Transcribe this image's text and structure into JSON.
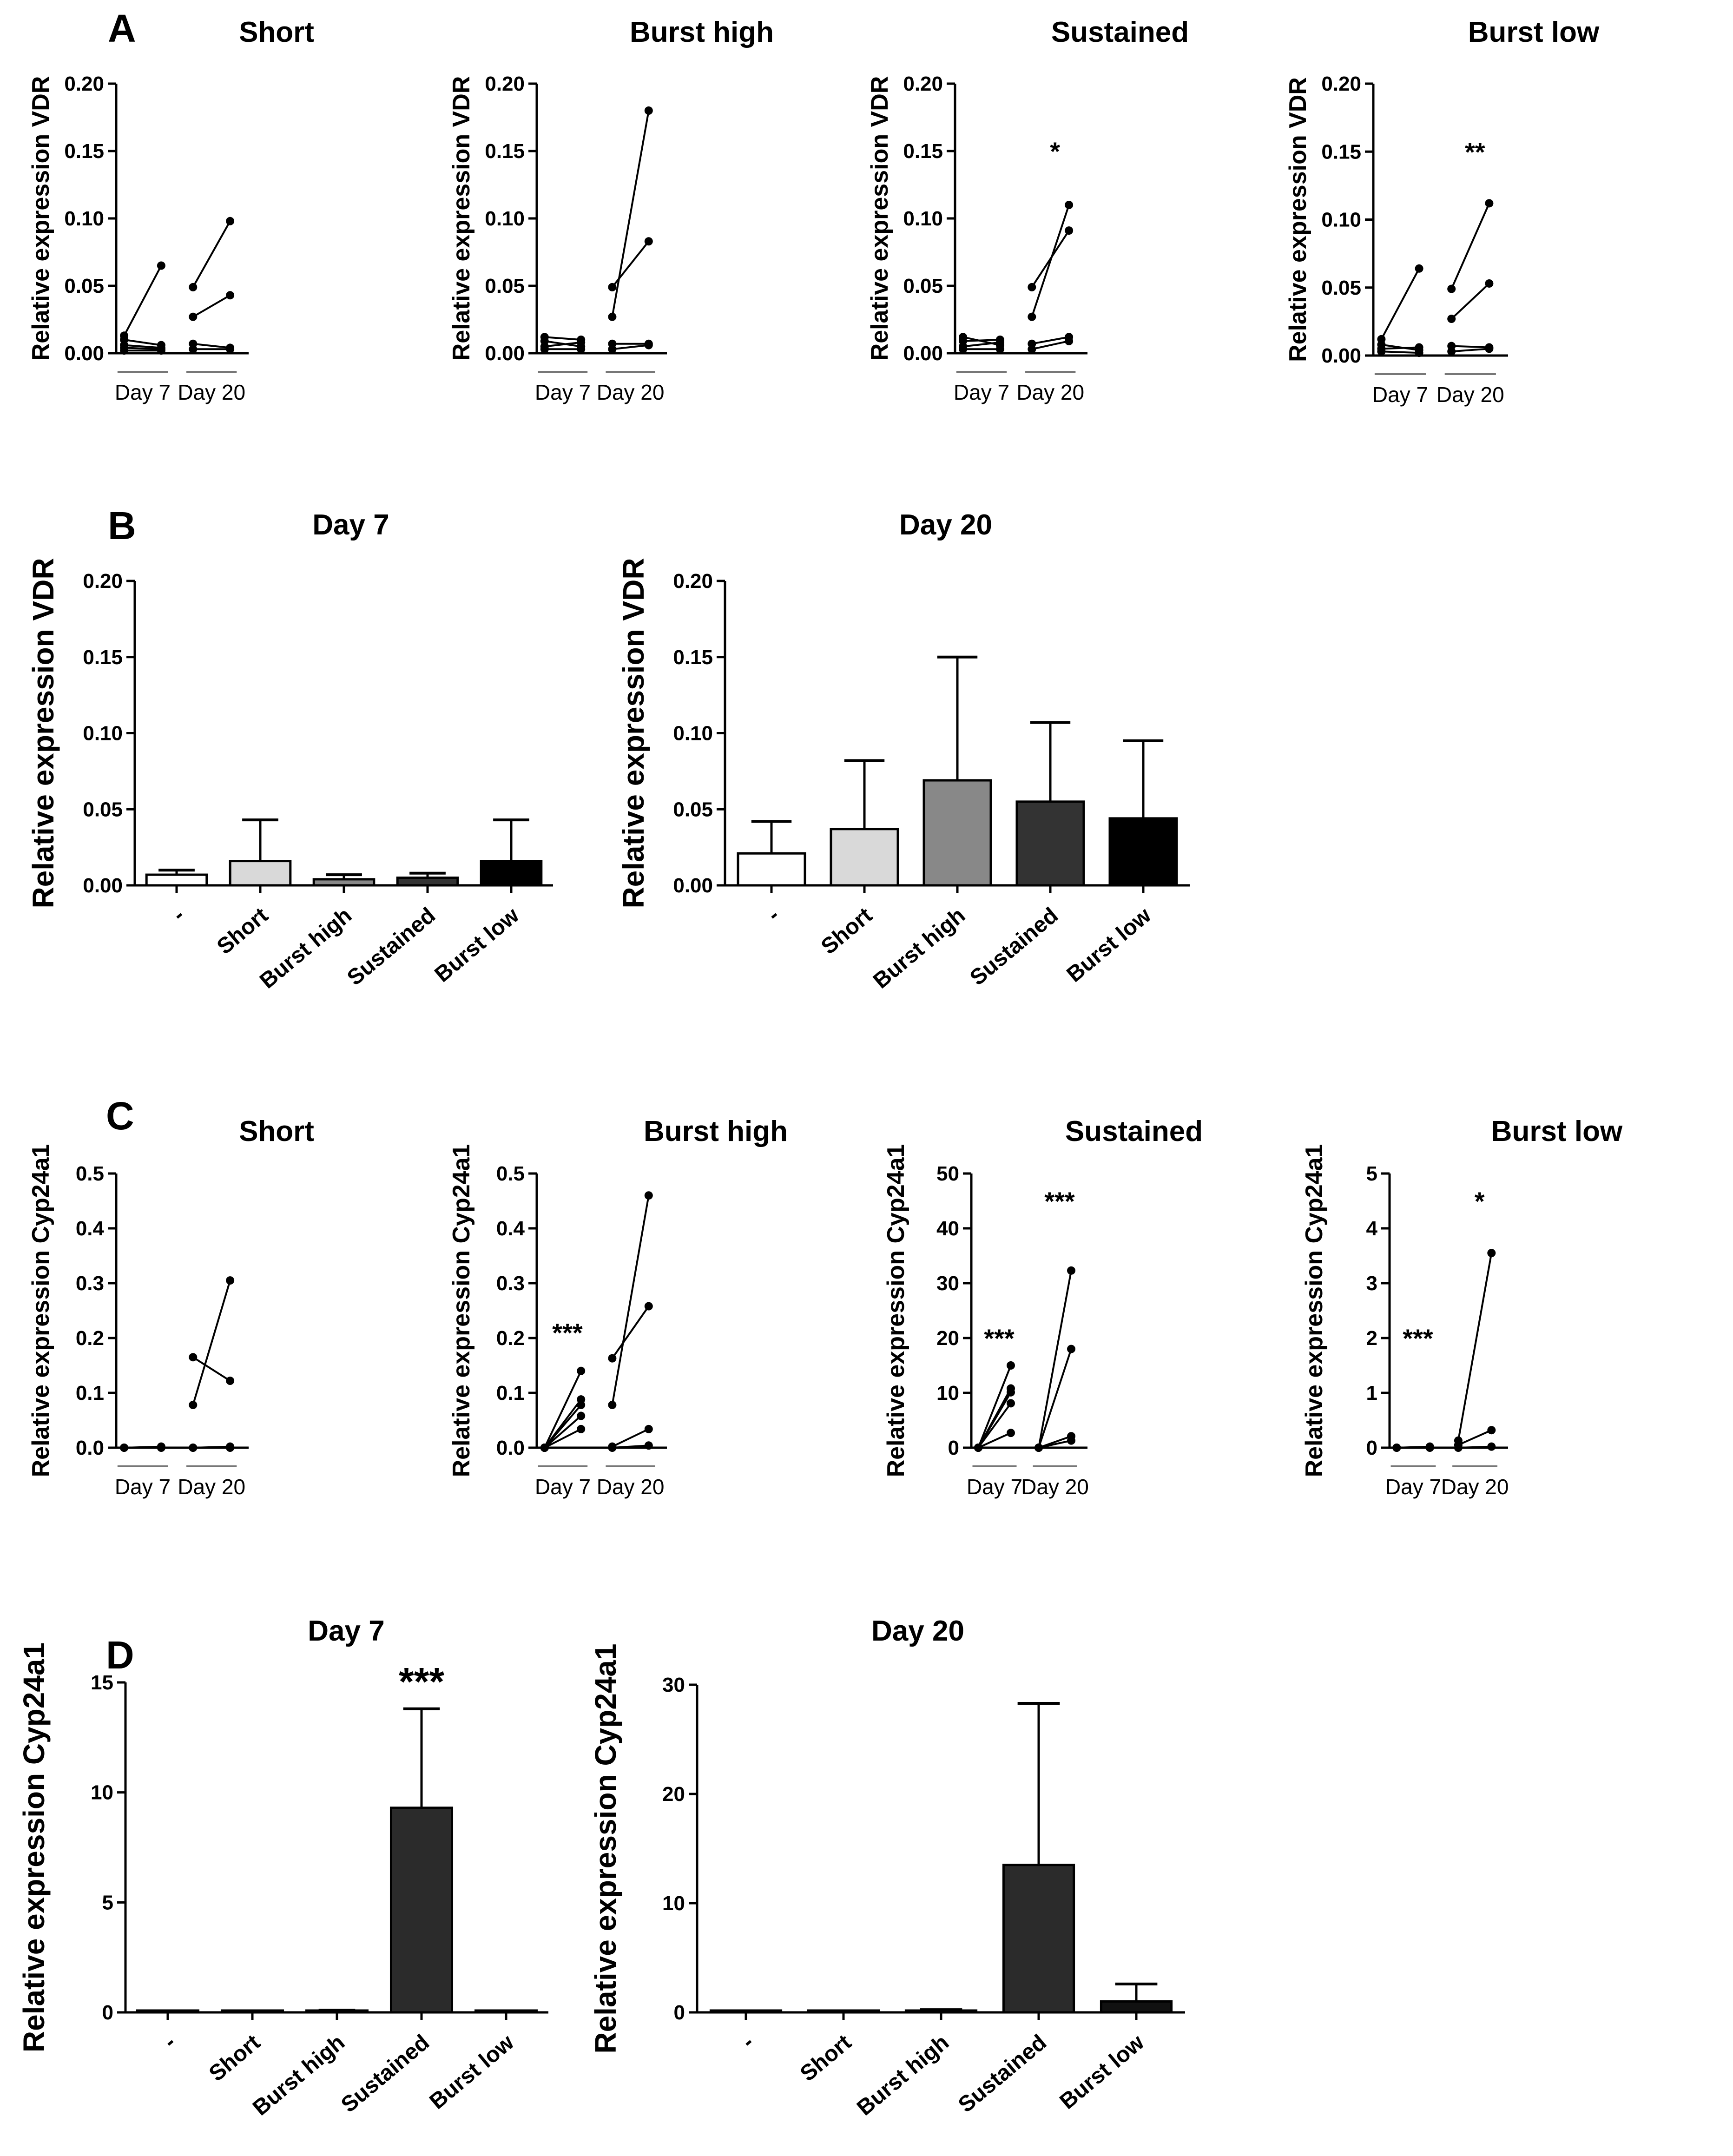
{
  "panels": [
    "A",
    "B",
    "C",
    "D"
  ],
  "chart_data": [
    {
      "panel": "A",
      "type": "line",
      "title": "Short",
      "ylabel": "Relative expression VDR",
      "ylim": [
        0,
        0.2
      ],
      "yticks": [
        "0.00",
        "0.05",
        "0.10",
        "0.15",
        "0.20"
      ],
      "categories": [
        "Day 7",
        "Day 20"
      ],
      "pairs": [
        {
          "day": "Day 7",
          "series": [
            [
              0.013,
              0.065
            ],
            [
              0.01,
              0.006
            ],
            [
              0.006,
              0.004
            ],
            [
              0.004,
              0.003
            ],
            [
              0.002,
              0.002
            ]
          ]
        },
        {
          "day": "Day 20",
          "series": [
            [
              0.049,
              0.098
            ],
            [
              0.027,
              0.043
            ],
            [
              0.007,
              0.004
            ],
            [
              0.003,
              0.003
            ]
          ]
        }
      ],
      "annotations": []
    },
    {
      "panel": "A",
      "type": "line",
      "title": "Burst high",
      "ylabel": "Relative expression VDR",
      "ylim": [
        0,
        0.2
      ],
      "yticks": [
        "0.00",
        "0.05",
        "0.10",
        "0.15",
        "0.20"
      ],
      "categories": [
        "Day 7",
        "Day 20"
      ],
      "pairs": [
        {
          "day": "Day 7",
          "series": [
            [
              0.012,
              0.01
            ],
            [
              0.009,
              0.005
            ],
            [
              0.005,
              0.008
            ],
            [
              0.003,
              0.003
            ]
          ]
        },
        {
          "day": "Day 20",
          "series": [
            [
              0.049,
              0.083
            ],
            [
              0.027,
              0.18
            ],
            [
              0.007,
              0.007
            ],
            [
              0.003,
              0.006
            ]
          ]
        }
      ],
      "annotations": []
    },
    {
      "panel": "A",
      "type": "line",
      "title": "Sustained",
      "ylabel": "Relative expression VDR",
      "ylim": [
        0,
        0.2
      ],
      "yticks": [
        "0.00",
        "0.05",
        "0.10",
        "0.15",
        "0.20"
      ],
      "categories": [
        "Day 7",
        "Day 20"
      ],
      "pairs": [
        {
          "day": "Day 7",
          "series": [
            [
              0.012,
              0.006
            ],
            [
              0.009,
              0.01
            ],
            [
              0.005,
              0.008
            ],
            [
              0.003,
              0.003
            ]
          ]
        },
        {
          "day": "Day 20",
          "series": [
            [
              0.049,
              0.091
            ],
            [
              0.027,
              0.11
            ],
            [
              0.007,
              0.012
            ],
            [
              0.003,
              0.009
            ]
          ]
        }
      ],
      "annotations": [
        {
          "text": "*",
          "day": "Day 20",
          "y": 0.15
        }
      ]
    },
    {
      "panel": "A",
      "type": "line",
      "title": "Burst low",
      "ylabel": "Relative expression VDR",
      "ylim": [
        0,
        0.2
      ],
      "yticks": [
        "0.00",
        "0.05",
        "0.10",
        "0.15",
        "0.20"
      ],
      "categories": [
        "Day 7",
        "Day 20"
      ],
      "pairs": [
        {
          "day": "Day 7",
          "series": [
            [
              0.012,
              0.064
            ],
            [
              0.008,
              0.004
            ],
            [
              0.005,
              0.006
            ],
            [
              0.003,
              0.002
            ]
          ]
        },
        {
          "day": "Day 20",
          "series": [
            [
              0.049,
              0.112
            ],
            [
              0.027,
              0.053
            ],
            [
              0.007,
              0.006
            ],
            [
              0.003,
              0.005
            ]
          ]
        }
      ],
      "annotations": [
        {
          "text": "**",
          "day": "Day 20",
          "y": 0.15
        }
      ]
    },
    {
      "panel": "B",
      "type": "bar",
      "title": "Day 7",
      "ylabel": "Relative expression VDR",
      "ylim": [
        0,
        0.2
      ],
      "yticks": [
        "0.00",
        "0.05",
        "0.10",
        "0.15",
        "0.20"
      ],
      "categories": [
        "-",
        "Short",
        "Burst high",
        "Sustained",
        "Burst low"
      ],
      "values": [
        0.007,
        0.016,
        0.004,
        0.005,
        0.016
      ],
      "errors": [
        0.003,
        0.027,
        0.003,
        0.003,
        0.027
      ],
      "colors": [
        "#ffffff",
        "#d9d9d9",
        "#888888",
        "#333333",
        "#000000"
      ],
      "annotations": []
    },
    {
      "panel": "B",
      "type": "bar",
      "title": "Day 20",
      "ylabel": "Relative expression VDR",
      "ylim": [
        0,
        0.2
      ],
      "yticks": [
        "0.00",
        "0.05",
        "0.10",
        "0.15",
        "0.20"
      ],
      "categories": [
        "-",
        "Short",
        "Burst high",
        "Sustained",
        "Burst low"
      ],
      "values": [
        0.021,
        0.037,
        0.069,
        0.055,
        0.044
      ],
      "errors": [
        0.021,
        0.045,
        0.081,
        0.052,
        0.051
      ],
      "colors": [
        "#ffffff",
        "#d9d9d9",
        "#888888",
        "#333333",
        "#000000"
      ],
      "annotations": []
    },
    {
      "panel": "C",
      "type": "line",
      "title": "Short",
      "ylabel": "Relative expression Cyp24a1",
      "ylim": [
        0,
        0.5
      ],
      "yticks": [
        "0.0",
        "0.1",
        "0.2",
        "0.3",
        "0.4",
        "0.5"
      ],
      "categories": [
        "Day 7",
        "Day 20"
      ],
      "pairs": [
        {
          "day": "Day 7",
          "series": [
            [
              0.0,
              0.002
            ],
            [
              0.0,
              0.0
            ]
          ]
        },
        {
          "day": "Day 20",
          "series": [
            [
              0.165,
              0.122
            ],
            [
              0.078,
              0.305
            ],
            [
              0.0,
              0.002
            ],
            [
              0.0,
              0.0
            ]
          ]
        }
      ],
      "annotations": []
    },
    {
      "panel": "C",
      "type": "line",
      "title": "Burst high",
      "ylabel": "Relative expression Cyp24a1",
      "ylim": [
        0,
        0.5
      ],
      "yticks": [
        "0.0",
        "0.1",
        "0.2",
        "0.3",
        "0.4",
        "0.5"
      ],
      "categories": [
        "Day 7",
        "Day 20"
      ],
      "pairs": [
        {
          "day": "Day 7",
          "series": [
            [
              0.0,
              0.14
            ],
            [
              0.0,
              0.088
            ],
            [
              0.0,
              0.078
            ],
            [
              0.0,
              0.058
            ],
            [
              0.0,
              0.034
            ]
          ]
        },
        {
          "day": "Day 20",
          "series": [
            [
              0.163,
              0.258
            ],
            [
              0.078,
              0.46
            ],
            [
              0.002,
              0.034
            ],
            [
              0.0,
              0.004
            ]
          ]
        }
      ],
      "annotations": [
        {
          "text": "***",
          "day": "Day 7",
          "y": 0.21
        }
      ]
    },
    {
      "panel": "C",
      "type": "line",
      "title": "Sustained",
      "ylabel": "Relative expression Cyp24a1",
      "ylim": [
        0,
        50
      ],
      "yticks": [
        "0",
        "10",
        "20",
        "30",
        "40",
        "50"
      ],
      "categories": [
        "Day 7",
        "Day 20"
      ],
      "pairs": [
        {
          "day": "Day 7",
          "series": [
            [
              0.0,
              15.0
            ],
            [
              0.0,
              10.8
            ],
            [
              0.0,
              10.1
            ],
            [
              0.0,
              8.1
            ],
            [
              0.0,
              2.7
            ]
          ]
        },
        {
          "day": "Day 20",
          "series": [
            [
              0.0,
              32.3
            ],
            [
              0.0,
              18.0
            ],
            [
              0.0,
              2.1
            ],
            [
              0.0,
              1.3
            ]
          ]
        }
      ],
      "annotations": [
        {
          "text": "***",
          "day": "Day 7",
          "y": 20
        },
        {
          "text": "***",
          "day": "Day 20",
          "y": 45
        }
      ]
    },
    {
      "panel": "C",
      "type": "line",
      "title": "Burst low",
      "ylabel": "Relative expression Cyp24a1",
      "ylim": [
        0,
        5
      ],
      "yticks": [
        "0",
        "1",
        "2",
        "3",
        "4",
        "5"
      ],
      "categories": [
        "Day 7",
        "Day 20"
      ],
      "pairs": [
        {
          "day": "Day 7",
          "series": [
            [
              0.0,
              0.02
            ],
            [
              0.0,
              0.0
            ]
          ]
        },
        {
          "day": "Day 20",
          "series": [
            [
              0.13,
              3.55
            ],
            [
              0.05,
              0.32
            ],
            [
              0.0,
              0.02
            ]
          ]
        }
      ],
      "annotations": [
        {
          "text": "***",
          "day": "Day 7",
          "y": 2.0
        },
        {
          "text": "*",
          "day": "Day 20",
          "y": 4.5
        }
      ]
    },
    {
      "panel": "D",
      "type": "bar",
      "title": "Day 7",
      "ylabel": "Relative expression Cyp24a1",
      "ylim": [
        0,
        15
      ],
      "yticks": [
        "0",
        "5",
        "10",
        "15"
      ],
      "categories": [
        "-",
        "Short",
        "Burst high",
        "Sustained",
        "Burst low"
      ],
      "values": [
        0.0,
        0.0,
        0.05,
        9.3,
        0.0
      ],
      "errors": [
        0.0,
        0.0,
        0.05,
        4.5,
        0.0
      ],
      "colors": [
        "#222222",
        "#222222",
        "#222222",
        "#2b2b2b",
        "#222222"
      ],
      "annotations": [
        {
          "text": "***",
          "category": "Sustained"
        }
      ]
    },
    {
      "panel": "D",
      "type": "bar",
      "title": "Day 20",
      "ylabel": "Relative expression Cyp24a1",
      "ylim": [
        0,
        30
      ],
      "yticks": [
        "0",
        "10",
        "20",
        "30"
      ],
      "categories": [
        "-",
        "Short",
        "Burst high",
        "Sustained",
        "Burst low"
      ],
      "values": [
        0.0,
        0.05,
        0.15,
        13.5,
        1.0
      ],
      "errors": [
        0.0,
        0.0,
        0.1,
        14.8,
        1.6
      ],
      "colors": [
        "#222222",
        "#222222",
        "#222222",
        "#2b2b2b",
        "#111111"
      ],
      "annotations": []
    }
  ]
}
